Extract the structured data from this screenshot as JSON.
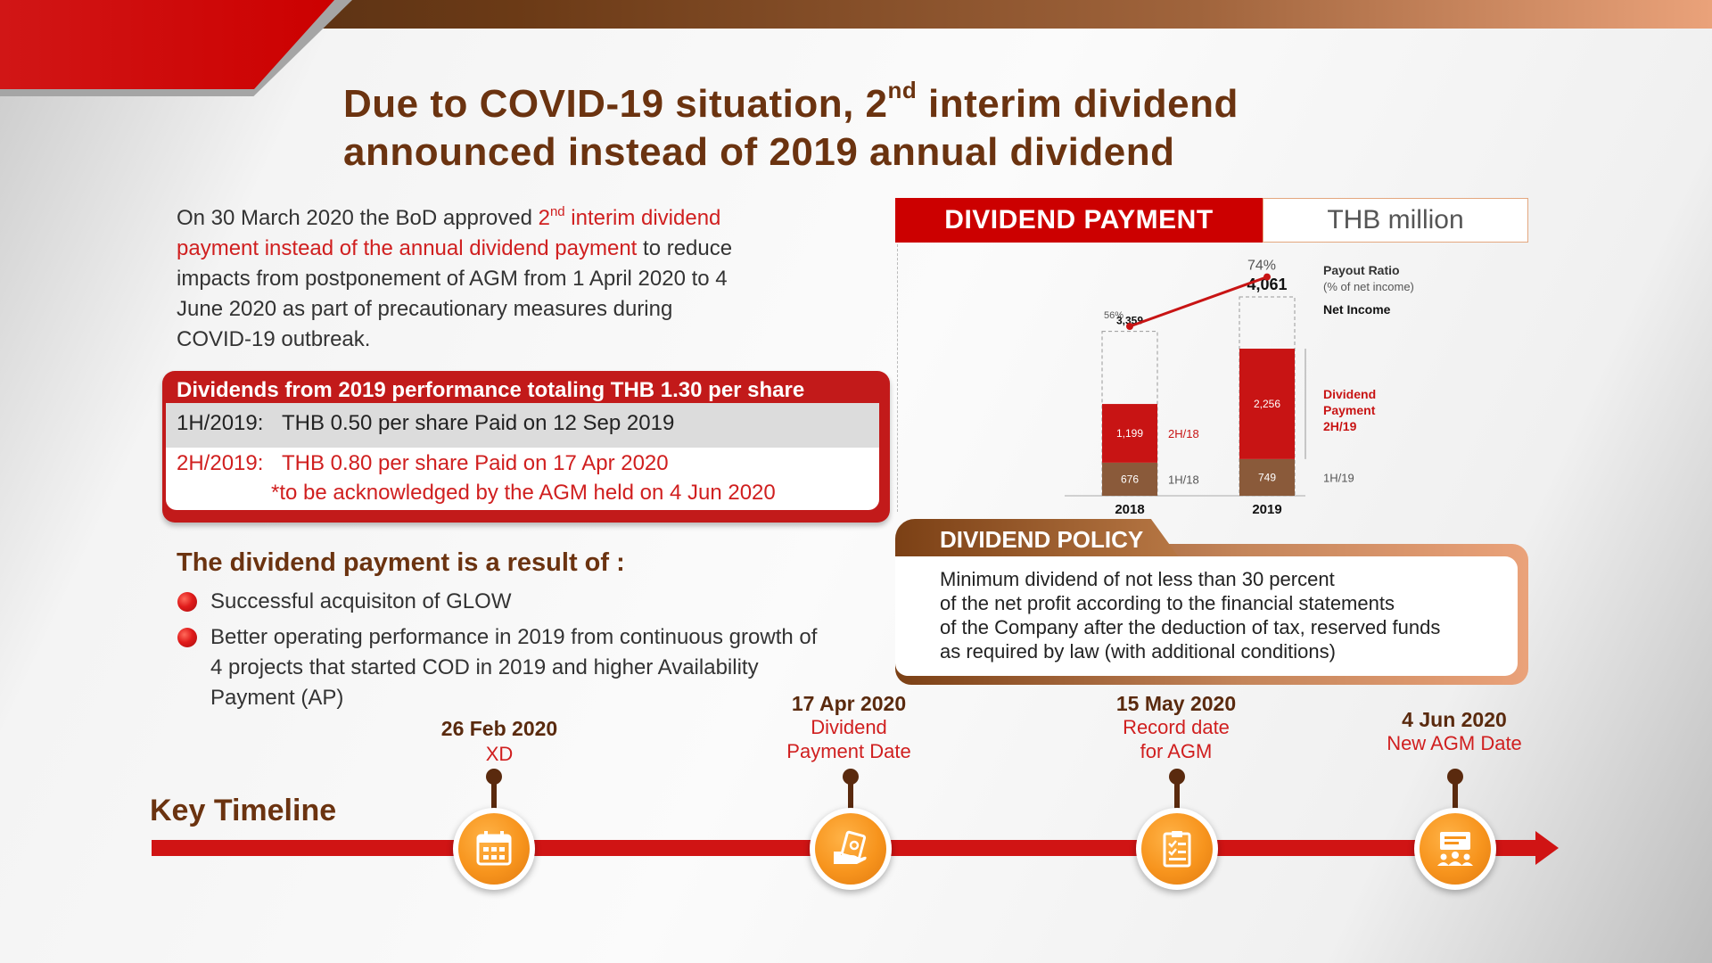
{
  "title": {
    "line1_pre": "Due to COVID-19 situation, 2",
    "line1_sup": "nd",
    "line1_post": " interim dividend",
    "line2": "announced instead of 2019 annual dividend"
  },
  "intro": {
    "part1": "On 30 March 2020 the BoD approved ",
    "hl1": "2",
    "hl_sup": "nd",
    "hl2": " interim dividend payment instead of the annual dividend payment",
    "part2": " to reduce impacts from postponement of AGM from 1 April 2020 to 4 June 2020 as part of precautionary measures during COVID-19 outbreak."
  },
  "dividends_box": {
    "title": "Dividends from 2019 performance totaling THB 1.30 per share",
    "rows": [
      {
        "label": "1H/2019:",
        "text": "THB 0.50 per share Paid on 12 Sep 2019"
      },
      {
        "label": "2H/2019:",
        "text": "THB 0.80 per share Paid on 17 Apr 2020",
        "note": "*to be acknowledged by the AGM held on 4 Jun 2020"
      }
    ]
  },
  "result": {
    "heading": "The dividend payment is a result of :",
    "bullets": [
      "Successful acquisiton of GLOW",
      "Better operating performance in 2019 from continuous growth of 4 projects that started COD in 2019 and higher Availability Payment (AP)"
    ]
  },
  "dividend_payment": {
    "header": "DIVIDEND PAYMENT",
    "unit": "THB million"
  },
  "chart_data": {
    "type": "bar",
    "categories": [
      "2018",
      "2019"
    ],
    "series": [
      {
        "name": "1H/18",
        "values": [
          676,
          null
        ]
      },
      {
        "name": "2H/18",
        "values": [
          1199,
          null
        ]
      },
      {
        "name": "1H/19",
        "values": [
          null,
          749
        ]
      },
      {
        "name": "Dividend Payment 2H/19",
        "values": [
          null,
          2256
        ]
      }
    ],
    "net_income": {
      "name": "Net Income",
      "values": [
        3359,
        4061
      ],
      "labels": [
        "3,359",
        "4,061"
      ]
    },
    "payout_ratio": {
      "name": "Payout Ratio",
      "subname": "(% of net income)",
      "values": [
        56,
        74
      ],
      "labels": [
        "56%",
        "74%"
      ]
    },
    "bar_labels": {
      "2018": [
        "676",
        "1,199"
      ],
      "2019": [
        "749",
        "2,256"
      ]
    },
    "series_labels": {
      "h1_2018": "1H/18",
      "h2_2018": "2H/18",
      "h1_2019": "1H/19",
      "div_2h19": [
        "Dividend",
        "Payment",
        "2H/19"
      ]
    },
    "colors": {
      "dividend": "#c81414",
      "first_half": "#8a5a3a",
      "line": "#c81414"
    }
  },
  "policy": {
    "tab": "DIVIDEND POLICY",
    "lines": [
      "Minimum dividend of not less than 30 percent",
      "of the net profit according to the financial statements",
      "of the Company after the deduction of tax, reserved funds",
      "as required by law (with additional conditions)"
    ]
  },
  "timeline": {
    "title": "Key Timeline",
    "events": [
      {
        "date": "26 Feb 2020",
        "desc": [
          "XD"
        ],
        "icon": "calendar-icon"
      },
      {
        "date": "17 Apr 2020",
        "desc": [
          "Dividend",
          "Payment Date"
        ],
        "icon": "money-hand-icon"
      },
      {
        "date": "15 May 2020",
        "desc": [
          "Record date",
          "for AGM"
        ],
        "icon": "clipboard-checklist-icon"
      },
      {
        "date": "4 Jun 2020",
        "desc": [
          "New AGM Date"
        ],
        "icon": "meeting-presentation-icon"
      }
    ]
  }
}
